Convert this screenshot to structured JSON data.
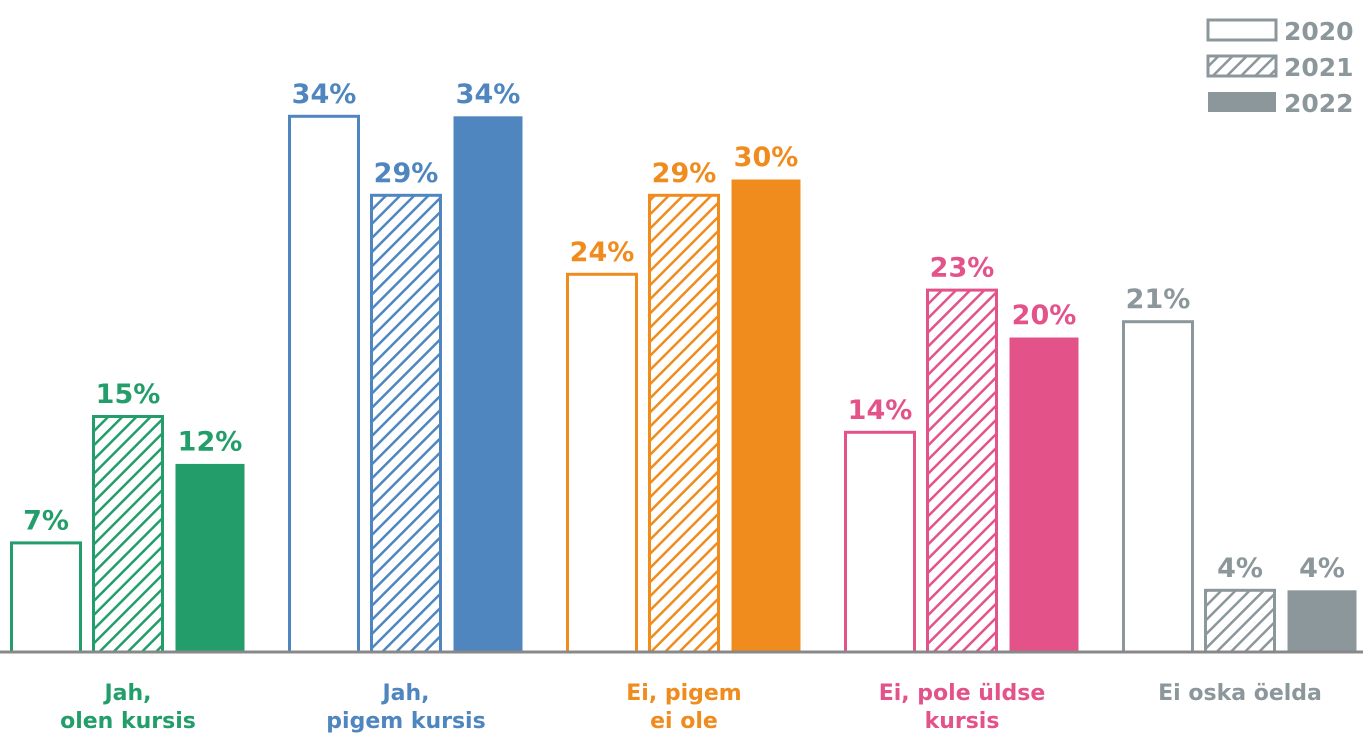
{
  "chart_data": {
    "type": "bar",
    "categories": [
      "Jah,\nolen kursis",
      "Jah,\npigem kursis",
      "Ei, pigem\nei ole",
      "Ei, pole üldse\nkursis",
      "Ei oska öelda"
    ],
    "colors": [
      "#239e6a",
      "#4f86c0",
      "#f08c1e",
      "#e3538a",
      "#8c979c"
    ],
    "series": [
      {
        "name": "2020",
        "color": "#8c979c",
        "style": "outline",
        "values": [
          7,
          34,
          24,
          14,
          21
        ],
        "value_labels": [
          "7%",
          "34%",
          "24%",
          "14%",
          "21%"
        ]
      },
      {
        "name": "2021",
        "color": "#8c979c",
        "style": "hatched",
        "values": [
          15,
          29,
          29,
          23,
          4
        ],
        "value_labels": [
          "15%",
          "29%",
          "29%",
          "23%",
          "4%"
        ]
      },
      {
        "name": "2022",
        "color": "#8c979c",
        "style": "filled",
        "values": [
          12,
          34,
          30,
          20,
          4
        ],
        "value_labels": [
          "12%",
          "34%",
          "30%",
          "20%",
          "4%"
        ]
      }
    ],
    "legend": "top-right"
  }
}
